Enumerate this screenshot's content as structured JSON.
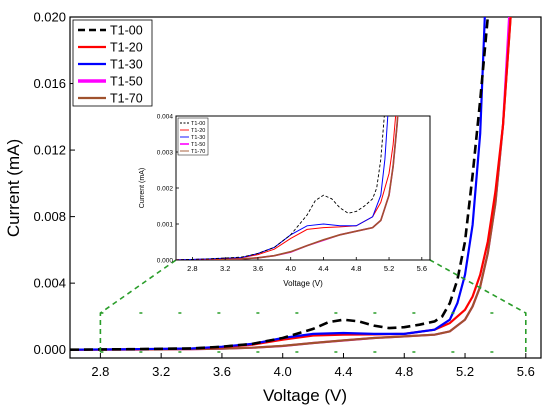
{
  "chart_data": {
    "type": "line",
    "xlabel": "Voltage (V)",
    "ylabel": "Current  (mA)",
    "xlim": [
      2.6,
      5.7
    ],
    "ylim": [
      -0.0005,
      0.02
    ],
    "xticks": [
      "2.8",
      "3.2",
      "3.6",
      "4.0",
      "4.4",
      "4.8",
      "5.2",
      "5.6"
    ],
    "xtick_values": [
      2.8,
      3.2,
      3.6,
      4.0,
      4.4,
      4.8,
      5.2,
      5.6
    ],
    "yticks": [
      "0.000",
      "0.004",
      "0.008",
      "0.012",
      "0.016",
      "0.020"
    ],
    "ytick_values": [
      0,
      0.004,
      0.008,
      0.012,
      0.016,
      0.02
    ],
    "legend_position": "top-left",
    "series": [
      {
        "name": "T1-00",
        "color": "#000000",
        "dash": true,
        "x": [
          2.6,
          3.0,
          3.4,
          3.6,
          3.8,
          4.0,
          4.2,
          4.3,
          4.4,
          4.5,
          4.6,
          4.7,
          4.8,
          4.9,
          5.0,
          5.05,
          5.1,
          5.15,
          5.2,
          5.25,
          5.3,
          5.35
        ],
        "y": [
          0.0,
          3e-05,
          8e-05,
          0.00018,
          0.00035,
          0.0007,
          0.00125,
          0.00165,
          0.0018,
          0.0017,
          0.00145,
          0.0013,
          0.00135,
          0.0015,
          0.0017,
          0.002,
          0.0028,
          0.0042,
          0.0065,
          0.0105,
          0.015,
          0.02
        ]
      },
      {
        "name": "T1-20",
        "color": "#ff0000",
        "dash": false,
        "x": [
          2.6,
          3.0,
          3.4,
          3.6,
          3.8,
          4.0,
          4.2,
          4.4,
          4.6,
          4.8,
          5.0,
          5.1,
          5.2,
          5.25,
          5.3,
          5.35,
          5.4,
          5.45,
          5.5
        ],
        "y": [
          0.0,
          2e-05,
          6e-05,
          0.00015,
          0.0003,
          0.0006,
          0.00085,
          0.0009,
          0.00092,
          0.00095,
          0.0012,
          0.0016,
          0.0024,
          0.0032,
          0.0045,
          0.0065,
          0.0095,
          0.0135,
          0.02
        ]
      },
      {
        "name": "T1-30",
        "color": "#0000ff",
        "dash": false,
        "x": [
          2.6,
          3.0,
          3.4,
          3.6,
          3.8,
          4.0,
          4.2,
          4.4,
          4.6,
          4.8,
          5.0,
          5.1,
          5.15,
          5.2,
          5.25,
          5.3,
          5.33
        ],
        "y": [
          0.0,
          3e-05,
          7e-05,
          0.00018,
          0.00035,
          0.0007,
          0.00095,
          0.001,
          0.00095,
          0.00095,
          0.0012,
          0.0018,
          0.0028,
          0.0045,
          0.0075,
          0.013,
          0.02
        ]
      },
      {
        "name": "T1-50",
        "color": "#ff00ff",
        "dash": false,
        "x": [
          2.6,
          3.0,
          3.4,
          3.6,
          3.8,
          4.0,
          4.2,
          4.4,
          4.6,
          4.8,
          5.0,
          5.1,
          5.2,
          5.25,
          5.3,
          5.35,
          5.4,
          5.45,
          5.49
        ],
        "y": [
          0.0,
          1e-05,
          3e-05,
          6e-05,
          0.00012,
          0.00022,
          0.0004,
          0.00055,
          0.0007,
          0.0008,
          0.0009,
          0.0011,
          0.0018,
          0.0026,
          0.0038,
          0.0058,
          0.0088,
          0.0135,
          0.02
        ]
      },
      {
        "name": "T1-70",
        "color": "#a0522d",
        "dash": false,
        "x": [
          2.6,
          3.0,
          3.4,
          3.6,
          3.8,
          4.0,
          4.2,
          4.4,
          4.6,
          4.8,
          5.0,
          5.1,
          5.2,
          5.25,
          5.3,
          5.35,
          5.4,
          5.45,
          5.5
        ],
        "y": [
          0.0,
          1e-05,
          3e-05,
          6e-05,
          0.00012,
          0.00023,
          0.0004,
          0.00056,
          0.0007,
          0.0008,
          0.0009,
          0.0011,
          0.0018,
          0.0026,
          0.0038,
          0.0058,
          0.0088,
          0.0135,
          0.02
        ]
      }
    ],
    "inset": {
      "xlabel": "Voltage (V)",
      "ylabel": "Current (mA)",
      "xlim": [
        2.6,
        5.7
      ],
      "ylim": [
        0,
        0.004
      ],
      "xticks": [
        "2.8",
        "3.2",
        "3.6",
        "4.0",
        "4.4",
        "4.8",
        "5.2",
        "5.6"
      ],
      "xtick_values": [
        2.8,
        3.2,
        3.6,
        4.0,
        4.4,
        4.8,
        5.2,
        5.6
      ],
      "yticks": [
        "0.000",
        "0.001",
        "0.002",
        "0.003",
        "0.004"
      ],
      "ytick_values": [
        0,
        0.001,
        0.002,
        0.003,
        0.004
      ],
      "legend": [
        "T1-00",
        "T1-20",
        "T1-30",
        "T1-50",
        "T1-70"
      ]
    }
  }
}
